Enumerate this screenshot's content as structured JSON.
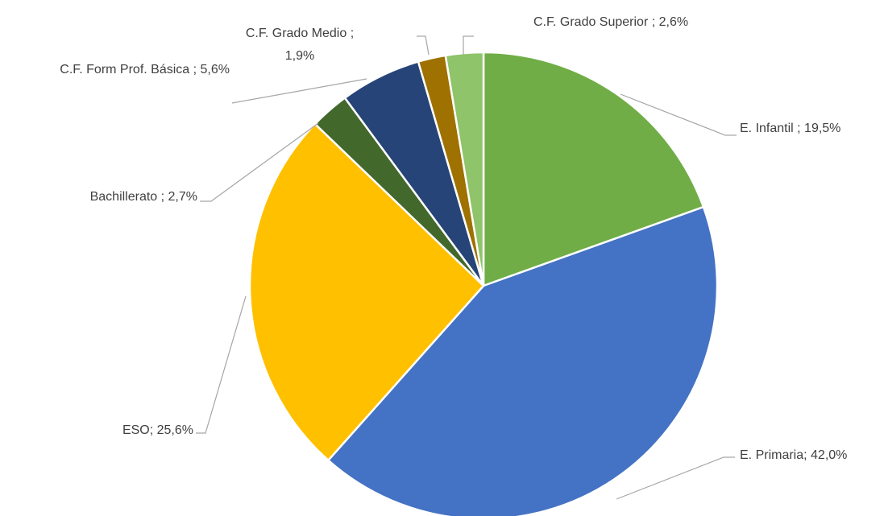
{
  "chart_data": {
    "type": "pie",
    "values": [
      19.5,
      42.0,
      25.6,
      2.7,
      5.6,
      1.9,
      2.6
    ],
    "value_labels": [
      "E. Infantil ; 19,5%",
      "E. Primaria; 42,0%",
      "ESO; 25,6%",
      "Bachillerato ; 2,7%",
      "C.F. Form Prof. Básica ; 5,6%",
      "C.F. Grado Medio ; 1,9%",
      "C.F. Grado Superior ; 2,6%"
    ],
    "colors": [
      "#70ad47",
      "#4472c4",
      "#ffc000",
      "#43682b",
      "#264478",
      "#9e7100",
      "#8fc46a"
    ]
  }
}
